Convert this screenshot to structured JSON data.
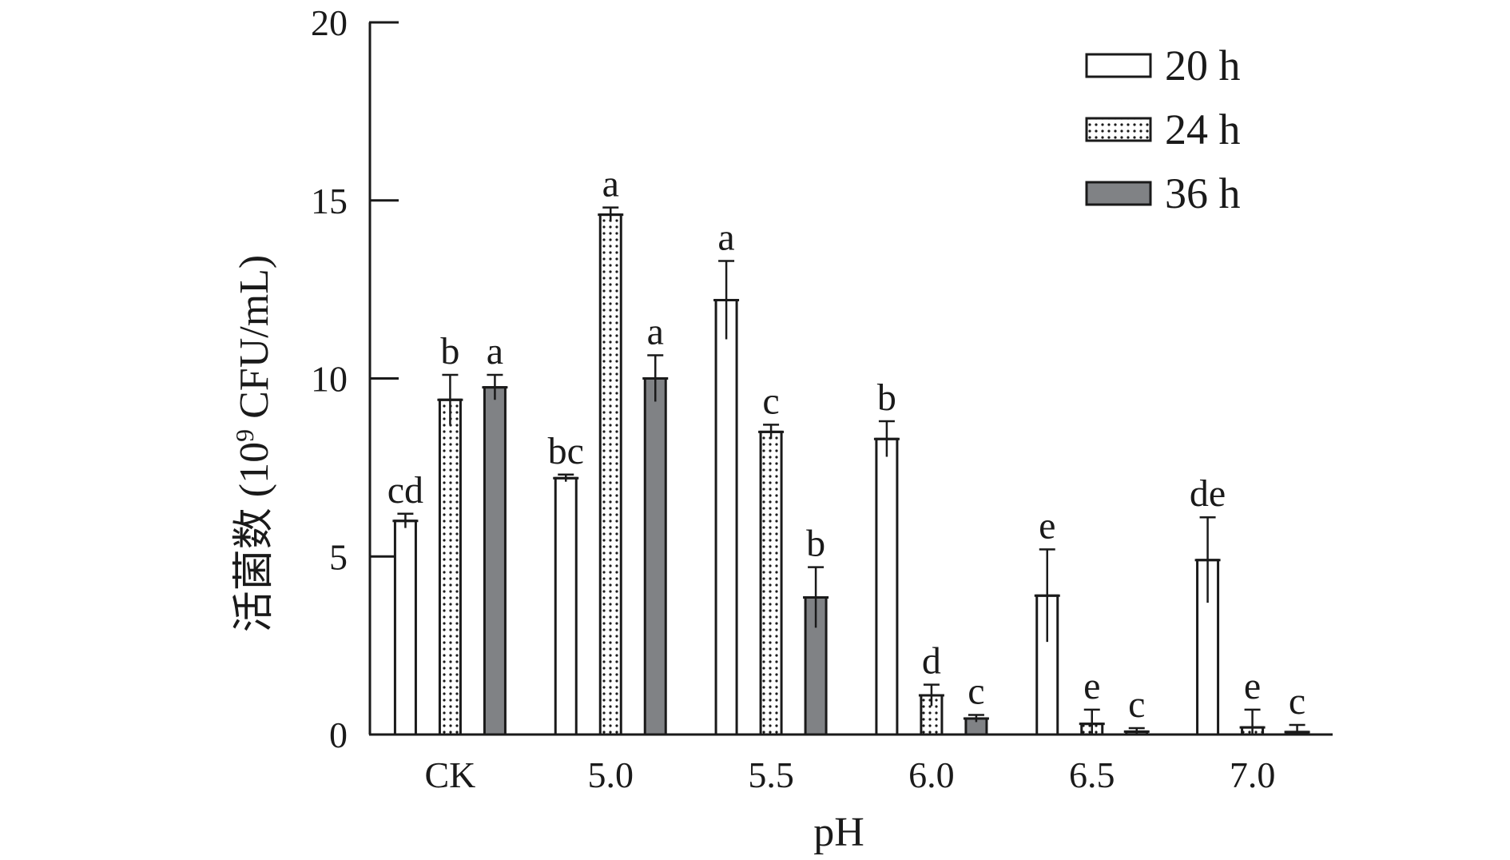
{
  "chart_data": {
    "type": "bar",
    "title": "",
    "xlabel": "pH",
    "ylabel": "活菌数 (10",
    "ylabel_sup": "9",
    "ylabel_tail": " CFU/mL)",
    "categories": [
      "CK",
      "5.0",
      "5.5",
      "6.0",
      "6.5",
      "7.0"
    ],
    "ylim": [
      0,
      20
    ],
    "yticks": [
      "0",
      "5",
      "10",
      "15",
      "20"
    ],
    "grid": false,
    "legend_position": "top-right",
    "series": [
      {
        "name": "20 h",
        "pattern": "none",
        "color": "#ffffff",
        "values": [
          6.0,
          7.2,
          12.2,
          8.3,
          3.9,
          4.9
        ],
        "errors": [
          0.2,
          0.1,
          1.1,
          0.5,
          1.3,
          1.2
        ],
        "letters": [
          "cd",
          "bc",
          "a",
          "b",
          "e",
          "de"
        ]
      },
      {
        "name": "24 h",
        "pattern": "dots",
        "color": "#ffffff",
        "values": [
          9.4,
          14.6,
          8.5,
          1.1,
          0.3,
          0.2
        ],
        "errors": [
          0.7,
          0.2,
          0.2,
          0.3,
          0.4,
          0.5
        ],
        "letters": [
          "b",
          "a",
          "c",
          "d",
          "e",
          "e"
        ]
      },
      {
        "name": "36 h",
        "pattern": "solid",
        "color": "#808285",
        "values": [
          9.75,
          10.0,
          3.85,
          0.45,
          0.08,
          0.07
        ],
        "errors": [
          0.35,
          0.65,
          0.85,
          0.1,
          0.1,
          0.2
        ],
        "letters": [
          "a",
          "a",
          "b",
          "c",
          "c",
          "c"
        ]
      }
    ]
  }
}
